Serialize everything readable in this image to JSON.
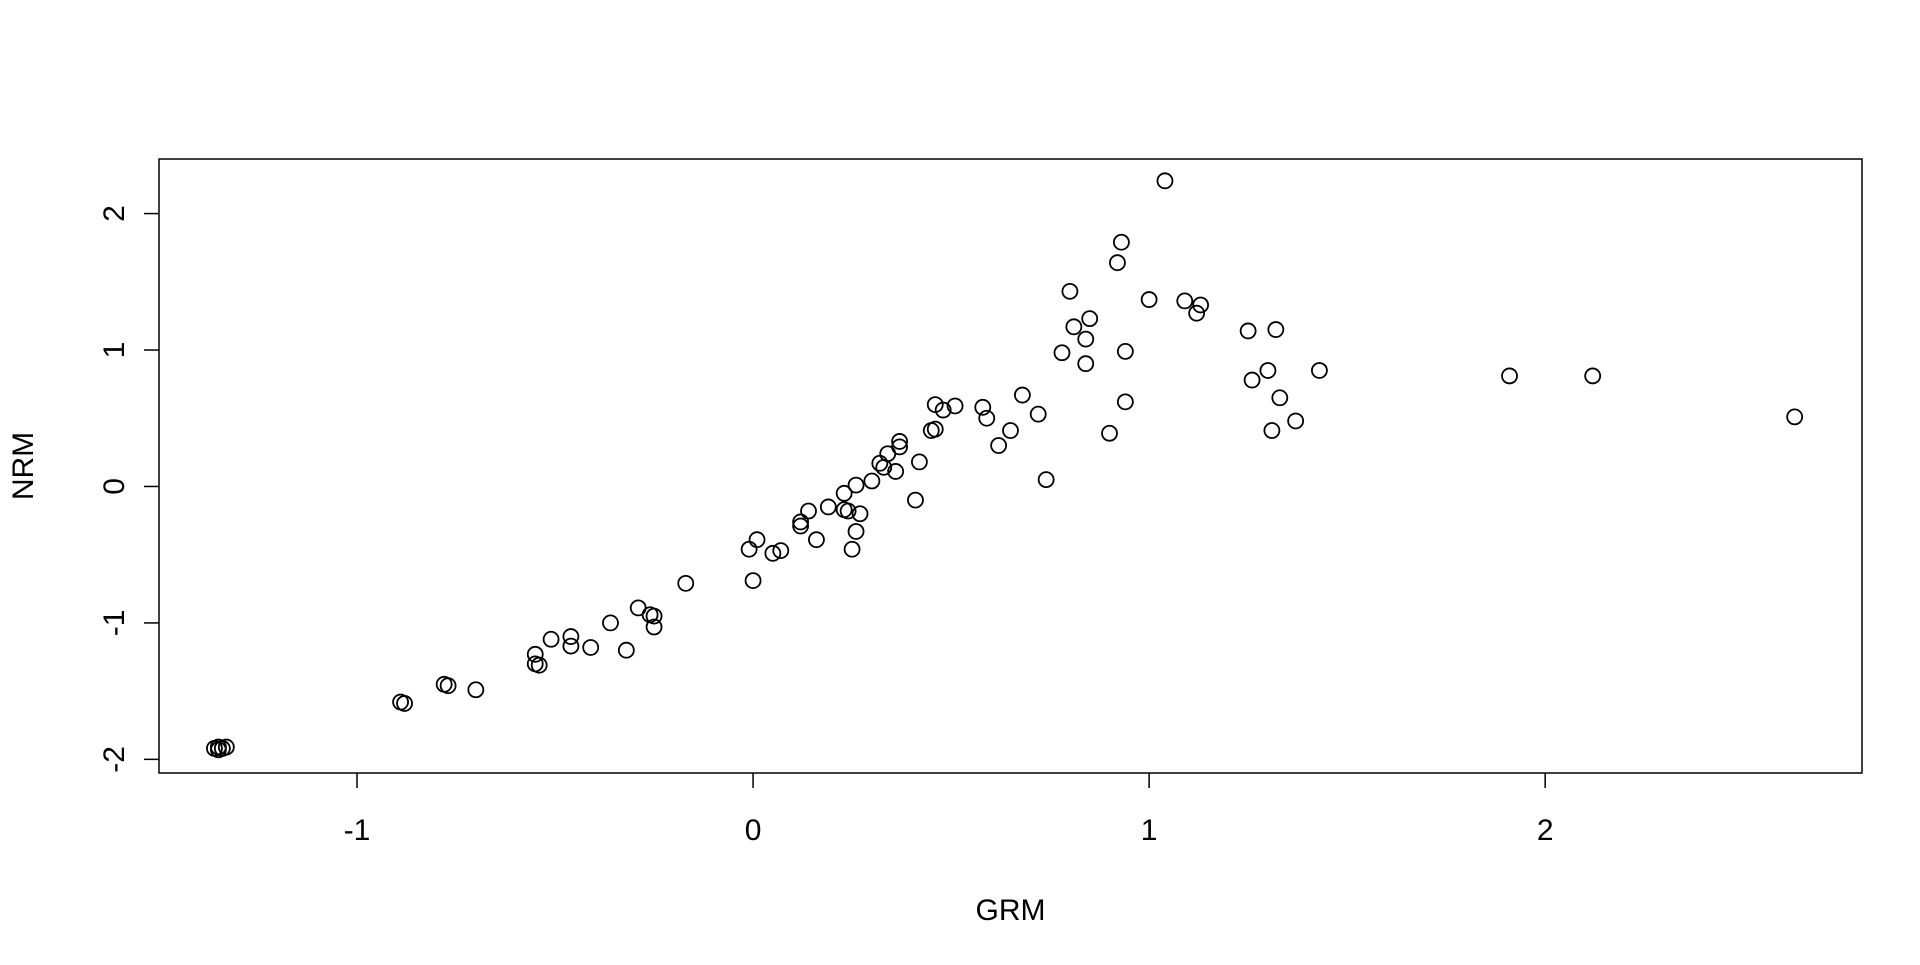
{
  "chart_data": {
    "type": "scatter",
    "title": "",
    "xlabel": "GRM",
    "ylabel": "NRM",
    "xlim": [
      -1.5,
      2.8
    ],
    "ylim": [
      -2.1,
      2.4
    ],
    "xticks": [
      -1,
      0,
      1,
      2
    ],
    "yticks": [
      -2,
      -1,
      0,
      1,
      2
    ],
    "xtick_labels": [
      "-1",
      "0",
      "1",
      "2"
    ],
    "ytick_labels": [
      "-2",
      "-1",
      "0",
      "1",
      "2"
    ],
    "grid": false,
    "legend": "none",
    "marker": "open-circle",
    "colors": {
      "marker": "#000000",
      "axis": "#000000",
      "background": "#ffffff"
    },
    "points": [
      {
        "x": -1.36,
        "y": -1.92
      },
      {
        "x": -1.35,
        "y": -1.91
      },
      {
        "x": -1.34,
        "y": -1.92
      },
      {
        "x": -1.33,
        "y": -1.91
      },
      {
        "x": -1.35,
        "y": -1.93
      },
      {
        "x": -0.89,
        "y": -1.58
      },
      {
        "x": -0.88,
        "y": -1.59
      },
      {
        "x": -0.78,
        "y": -1.45
      },
      {
        "x": -0.77,
        "y": -1.46
      },
      {
        "x": -0.7,
        "y": -1.49
      },
      {
        "x": -0.55,
        "y": -1.23
      },
      {
        "x": -0.55,
        "y": -1.3
      },
      {
        "x": -0.54,
        "y": -1.31
      },
      {
        "x": -0.51,
        "y": -1.12
      },
      {
        "x": -0.46,
        "y": -1.1
      },
      {
        "x": -0.46,
        "y": -1.17
      },
      {
        "x": -0.41,
        "y": -1.18
      },
      {
        "x": -0.36,
        "y": -1.0
      },
      {
        "x": -0.32,
        "y": -1.2
      },
      {
        "x": -0.29,
        "y": -0.89
      },
      {
        "x": -0.26,
        "y": -0.94
      },
      {
        "x": -0.25,
        "y": -1.03
      },
      {
        "x": -0.25,
        "y": -0.95
      },
      {
        "x": -0.17,
        "y": -0.71
      },
      {
        "x": -0.01,
        "y": -0.46
      },
      {
        "x": 0.0,
        "y": -0.69
      },
      {
        "x": 0.01,
        "y": -0.39
      },
      {
        "x": 0.05,
        "y": -0.49
      },
      {
        "x": 0.07,
        "y": -0.47
      },
      {
        "x": 0.12,
        "y": -0.26
      },
      {
        "x": 0.12,
        "y": -0.29
      },
      {
        "x": 0.14,
        "y": -0.18
      },
      {
        "x": 0.16,
        "y": -0.39
      },
      {
        "x": 0.19,
        "y": -0.15
      },
      {
        "x": 0.23,
        "y": -0.05
      },
      {
        "x": 0.23,
        "y": -0.17
      },
      {
        "x": 0.24,
        "y": -0.18
      },
      {
        "x": 0.25,
        "y": -0.46
      },
      {
        "x": 0.26,
        "y": -0.33
      },
      {
        "x": 0.26,
        "y": 0.01
      },
      {
        "x": 0.27,
        "y": -0.2
      },
      {
        "x": 0.3,
        "y": 0.04
      },
      {
        "x": 0.32,
        "y": 0.17
      },
      {
        "x": 0.33,
        "y": 0.14
      },
      {
        "x": 0.34,
        "y": 0.24
      },
      {
        "x": 0.36,
        "y": 0.11
      },
      {
        "x": 0.37,
        "y": 0.29
      },
      {
        "x": 0.37,
        "y": 0.33
      },
      {
        "x": 0.41,
        "y": -0.1
      },
      {
        "x": 0.42,
        "y": 0.18
      },
      {
        "x": 0.45,
        "y": 0.41
      },
      {
        "x": 0.46,
        "y": 0.42
      },
      {
        "x": 0.46,
        "y": 0.6
      },
      {
        "x": 0.48,
        "y": 0.56
      },
      {
        "x": 0.51,
        "y": 0.59
      },
      {
        "x": 0.58,
        "y": 0.58
      },
      {
        "x": 0.59,
        "y": 0.5
      },
      {
        "x": 0.62,
        "y": 0.3
      },
      {
        "x": 0.65,
        "y": 0.41
      },
      {
        "x": 0.68,
        "y": 0.67
      },
      {
        "x": 0.72,
        "y": 0.53
      },
      {
        "x": 0.74,
        "y": 0.05
      },
      {
        "x": 0.78,
        "y": 0.98
      },
      {
        "x": 0.8,
        "y": 1.43
      },
      {
        "x": 0.81,
        "y": 1.17
      },
      {
        "x": 0.84,
        "y": 0.9
      },
      {
        "x": 0.84,
        "y": 1.08
      },
      {
        "x": 0.85,
        "y": 1.23
      },
      {
        "x": 0.9,
        "y": 0.39
      },
      {
        "x": 0.92,
        "y": 1.64
      },
      {
        "x": 0.93,
        "y": 1.79
      },
      {
        "x": 0.94,
        "y": 0.99
      },
      {
        "x": 0.94,
        "y": 0.62
      },
      {
        "x": 1.0,
        "y": 1.37
      },
      {
        "x": 1.04,
        "y": 2.24
      },
      {
        "x": 1.09,
        "y": 1.36
      },
      {
        "x": 1.12,
        "y": 1.27
      },
      {
        "x": 1.13,
        "y": 1.33
      },
      {
        "x": 1.25,
        "y": 1.14
      },
      {
        "x": 1.26,
        "y": 0.78
      },
      {
        "x": 1.3,
        "y": 0.85
      },
      {
        "x": 1.31,
        "y": 0.41
      },
      {
        "x": 1.32,
        "y": 1.15
      },
      {
        "x": 1.33,
        "y": 0.65
      },
      {
        "x": 1.37,
        "y": 0.48
      },
      {
        "x": 1.43,
        "y": 0.85
      },
      {
        "x": 1.91,
        "y": 0.81
      },
      {
        "x": 2.12,
        "y": 0.81
      },
      {
        "x": 2.63,
        "y": 0.51
      }
    ]
  }
}
